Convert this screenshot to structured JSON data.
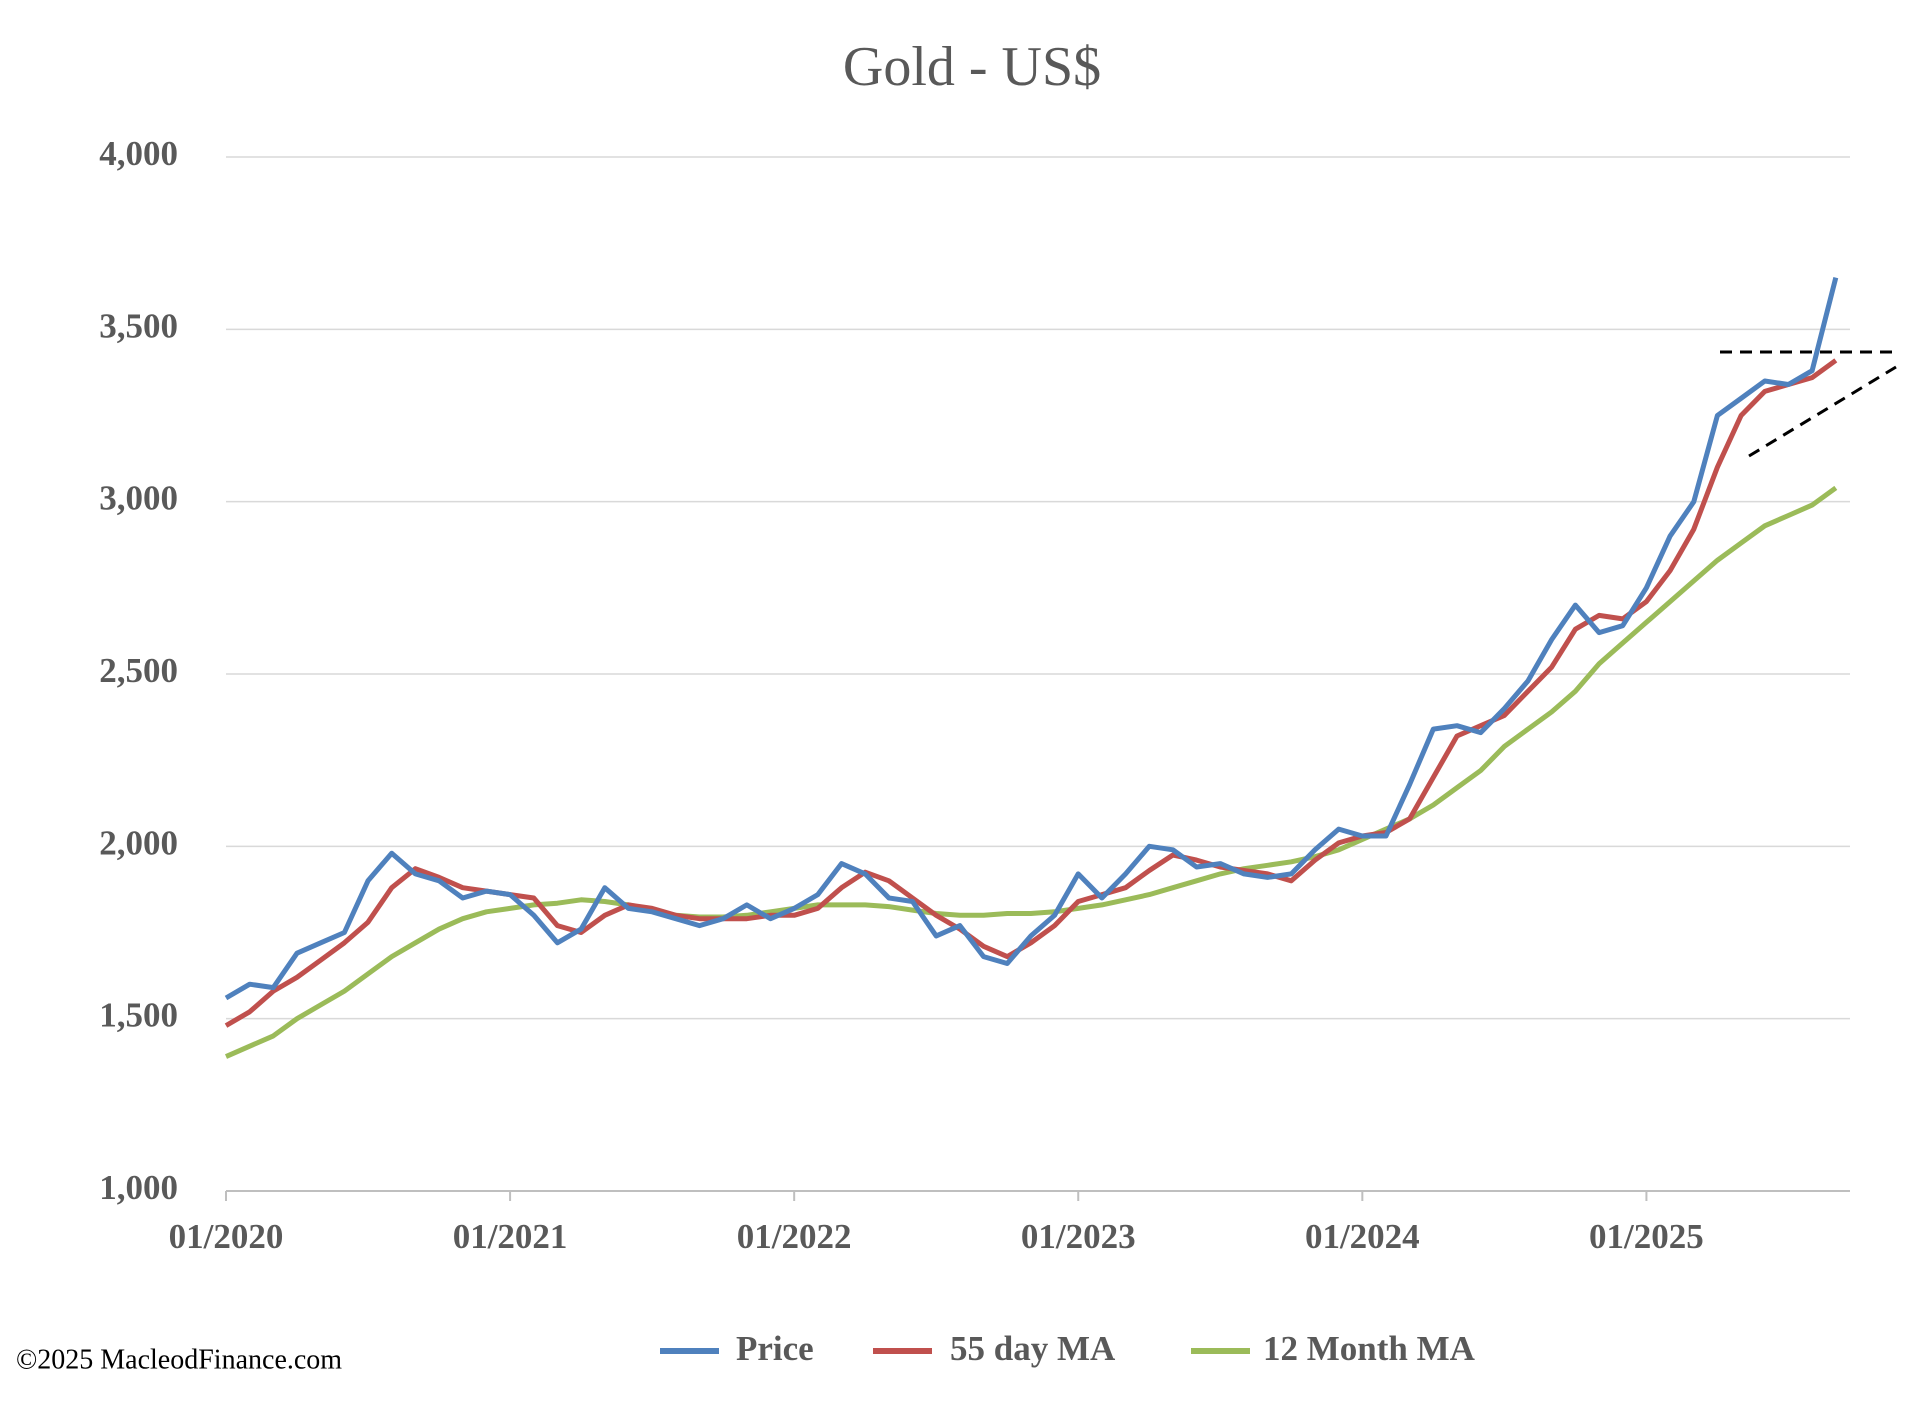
{
  "chart_data": {
    "type": "line",
    "title": "Gold - US$",
    "x": [
      "01/2020",
      "02/2020",
      "03/2020",
      "04/2020",
      "05/2020",
      "06/2020",
      "07/2020",
      "08/2020",
      "09/2020",
      "10/2020",
      "11/2020",
      "12/2020",
      "01/2021",
      "02/2021",
      "03/2021",
      "04/2021",
      "05/2021",
      "06/2021",
      "07/2021",
      "08/2021",
      "09/2021",
      "10/2021",
      "11/2021",
      "12/2021",
      "01/2022",
      "02/2022",
      "03/2022",
      "04/2022",
      "05/2022",
      "06/2022",
      "07/2022",
      "08/2022",
      "09/2022",
      "10/2022",
      "11/2022",
      "12/2022",
      "01/2023",
      "02/2023",
      "03/2023",
      "04/2023",
      "05/2023",
      "06/2023",
      "07/2023",
      "08/2023",
      "09/2023",
      "10/2023",
      "11/2023",
      "12/2023",
      "01/2024",
      "02/2024",
      "03/2024",
      "04/2024",
      "05/2024",
      "06/2024",
      "07/2024",
      "08/2024",
      "09/2024",
      "10/2024",
      "11/2024",
      "12/2024",
      "01/2025",
      "02/2025",
      "03/2025",
      "04/2025",
      "05/2025",
      "06/2025",
      "07/2025",
      "08/2025",
      "09/2025"
    ],
    "series": [
      {
        "name": "Price",
        "color": "#4f81bd",
        "values": [
          1560,
          1600,
          1590,
          1690,
          1720,
          1750,
          1900,
          1980,
          1920,
          1900,
          1850,
          1870,
          1860,
          1800,
          1720,
          1760,
          1880,
          1820,
          1810,
          1790,
          1770,
          1790,
          1830,
          1790,
          1820,
          1860,
          1950,
          1920,
          1850,
          1840,
          1740,
          1770,
          1680,
          1660,
          1740,
          1800,
          1920,
          1850,
          1920,
          2000,
          1990,
          1940,
          1950,
          1920,
          1910,
          1920,
          1990,
          2050,
          2030,
          2030,
          2180,
          2340,
          2350,
          2330,
          2400,
          2480,
          2600,
          2700,
          2620,
          2640,
          2750,
          2900,
          3000,
          3250,
          3300,
          3350,
          3340,
          3380,
          3650
        ]
      },
      {
        "name": "55 day MA",
        "color": "#c0504d",
        "values": [
          1480,
          1520,
          1580,
          1620,
          1670,
          1720,
          1780,
          1880,
          1935,
          1910,
          1880,
          1870,
          1860,
          1850,
          1770,
          1750,
          1800,
          1830,
          1820,
          1800,
          1790,
          1790,
          1790,
          1800,
          1800,
          1820,
          1880,
          1925,
          1900,
          1850,
          1800,
          1760,
          1710,
          1680,
          1720,
          1770,
          1840,
          1860,
          1880,
          1930,
          1975,
          1960,
          1940,
          1930,
          1920,
          1900,
          1960,
          2010,
          2030,
          2040,
          2080,
          2200,
          2320,
          2350,
          2380,
          2450,
          2520,
          2630,
          2670,
          2660,
          2710,
          2800,
          2920,
          3100,
          3250,
          3320,
          3340,
          3360,
          3410
        ]
      },
      {
        "name": "12 Month MA",
        "color": "#9bbb59",
        "values": [
          1390,
          1420,
          1450,
          1500,
          1540,
          1580,
          1630,
          1680,
          1720,
          1760,
          1790,
          1810,
          1820,
          1830,
          1835,
          1845,
          1840,
          1830,
          1815,
          1800,
          1795,
          1795,
          1800,
          1810,
          1820,
          1830,
          1830,
          1830,
          1825,
          1815,
          1805,
          1800,
          1800,
          1805,
          1805,
          1810,
          1820,
          1830,
          1845,
          1860,
          1880,
          1900,
          1920,
          1935,
          1945,
          1955,
          1970,
          1990,
          2020,
          2050,
          2080,
          2120,
          2170,
          2220,
          2290,
          2340,
          2390,
          2450,
          2530,
          2590,
          2650,
          2710,
          2770,
          2830,
          2880,
          2930,
          2960,
          2990,
          3040
        ]
      }
    ],
    "ylim": [
      1000,
      4000
    ],
    "yticks": [
      {
        "value": 1000,
        "label": "1,000"
      },
      {
        "value": 1500,
        "label": "1,500"
      },
      {
        "value": 2000,
        "label": "2,000"
      },
      {
        "value": 2500,
        "label": "2,500"
      },
      {
        "value": 3000,
        "label": "3,000"
      },
      {
        "value": 3500,
        "label": "3,500"
      },
      {
        "value": 4000,
        "label": "4,000"
      }
    ],
    "grid": true,
    "legend": "bottom",
    "footnote": "©2025 MacleodFinance.com"
  }
}
